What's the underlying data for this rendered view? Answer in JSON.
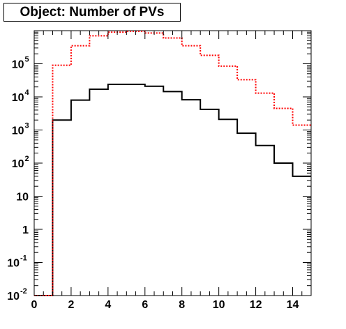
{
  "chart_data": {
    "type": "histogram",
    "title": "Object: Number of PVs",
    "xlabel": "",
    "ylabel": "",
    "x_bin_edges": [
      0,
      1,
      2,
      3,
      4,
      5,
      6,
      7,
      8,
      9,
      10,
      11,
      12,
      13,
      14,
      15
    ],
    "xlim": [
      0,
      15
    ],
    "ylim": [
      0.01,
      1000000
    ],
    "y_scale": "log",
    "grid": false,
    "legend": "none",
    "x_ticks": [
      {
        "value": 0,
        "label": "0"
      },
      {
        "value": 2,
        "label": "2"
      },
      {
        "value": 4,
        "label": "4"
      },
      {
        "value": 6,
        "label": "6"
      },
      {
        "value": 8,
        "label": "8"
      },
      {
        "value": 10,
        "label": "10"
      },
      {
        "value": 12,
        "label": "12"
      },
      {
        "value": 14,
        "label": "14"
      }
    ],
    "y_ticks": [
      {
        "value": 0.01,
        "base": "10",
        "exp": "-2"
      },
      {
        "value": 0.1,
        "base": "10",
        "exp": "-1"
      },
      {
        "value": 1,
        "base": "1",
        "exp": ""
      },
      {
        "value": 10,
        "base": "10",
        "exp": ""
      },
      {
        "value": 100,
        "base": "10",
        "exp": "2"
      },
      {
        "value": 1000,
        "base": "10",
        "exp": "3"
      },
      {
        "value": 10000,
        "base": "10",
        "exp": "4"
      },
      {
        "value": 100000,
        "base": "10",
        "exp": "5"
      }
    ],
    "series": [
      {
        "style": "solid",
        "color": "#000000",
        "values": [
          0.01,
          2000,
          8000,
          17000,
          24000,
          24000,
          21000,
          14500,
          8200,
          4200,
          2100,
          800,
          340,
          100,
          40
        ]
      },
      {
        "style": "dotted",
        "color": "#ff0000",
        "values": [
          0.01,
          90000,
          350000,
          700000,
          900000,
          950000,
          850000,
          600000,
          350000,
          180000,
          85000,
          33000,
          13000,
          4500,
          1400
        ]
      }
    ]
  }
}
